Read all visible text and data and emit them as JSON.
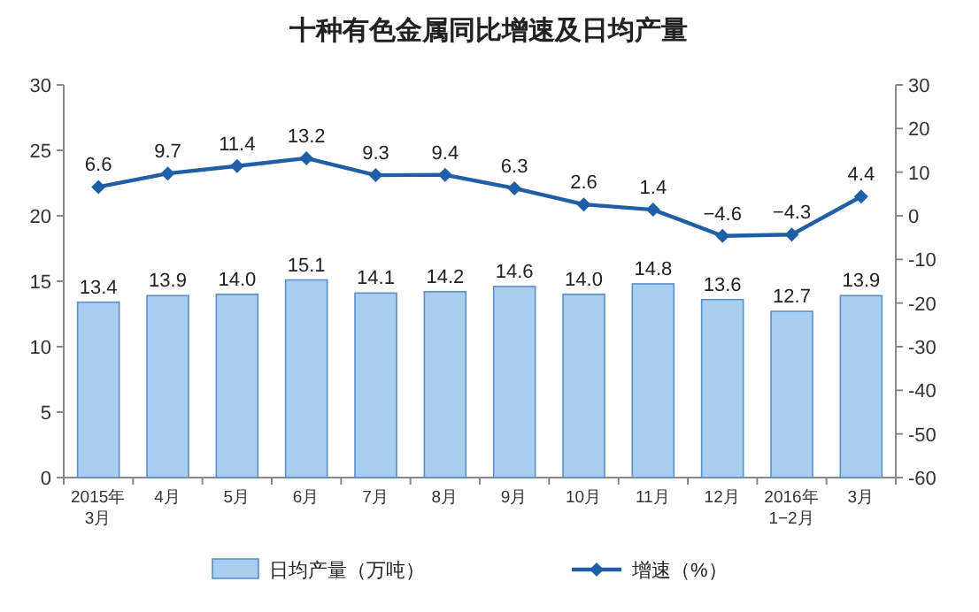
{
  "chart_data": {
    "type": "bar",
    "title": "十种有色金属同比增速及日均产量",
    "categories": [
      "2015年\n3月",
      "4月",
      "5月",
      "6月",
      "7月",
      "8月",
      "9月",
      "10月",
      "11月",
      "12月",
      "2016年\n1−2月",
      "3月"
    ],
    "series": [
      {
        "name": "日均产量（万吨）",
        "color": "#a8cdee",
        "values": [
          13.4,
          13.9,
          14.0,
          15.1,
          14.1,
          14.2,
          14.6,
          14.0,
          14.8,
          13.6,
          12.7,
          13.9
        ],
        "value_labels": [
          "13.4",
          "13.9",
          "14.0",
          "15.1",
          "14.1",
          "14.2",
          "14.6",
          "14.0",
          "14.8",
          "13.6",
          "12.7",
          "13.9"
        ]
      },
      {
        "name": "增速（%）",
        "type": "line",
        "axis": "y2",
        "marker": "diamond",
        "color": "#1f5fa8",
        "values": [
          6.6,
          9.7,
          11.4,
          13.2,
          9.3,
          9.4,
          6.3,
          2.6,
          1.4,
          -4.6,
          -4.3,
          4.4
        ]
      }
    ],
    "ylim": [
      0,
      30
    ],
    "yticks": [
      0,
      5,
      10,
      15,
      20,
      25,
      30
    ],
    "y2lim": [
      -60,
      30
    ],
    "y2ticks": [
      -60,
      -50,
      -40,
      -30,
      -20,
      -10,
      0,
      10,
      20,
      30
    ],
    "data_labels": true,
    "legend": "bottom"
  }
}
